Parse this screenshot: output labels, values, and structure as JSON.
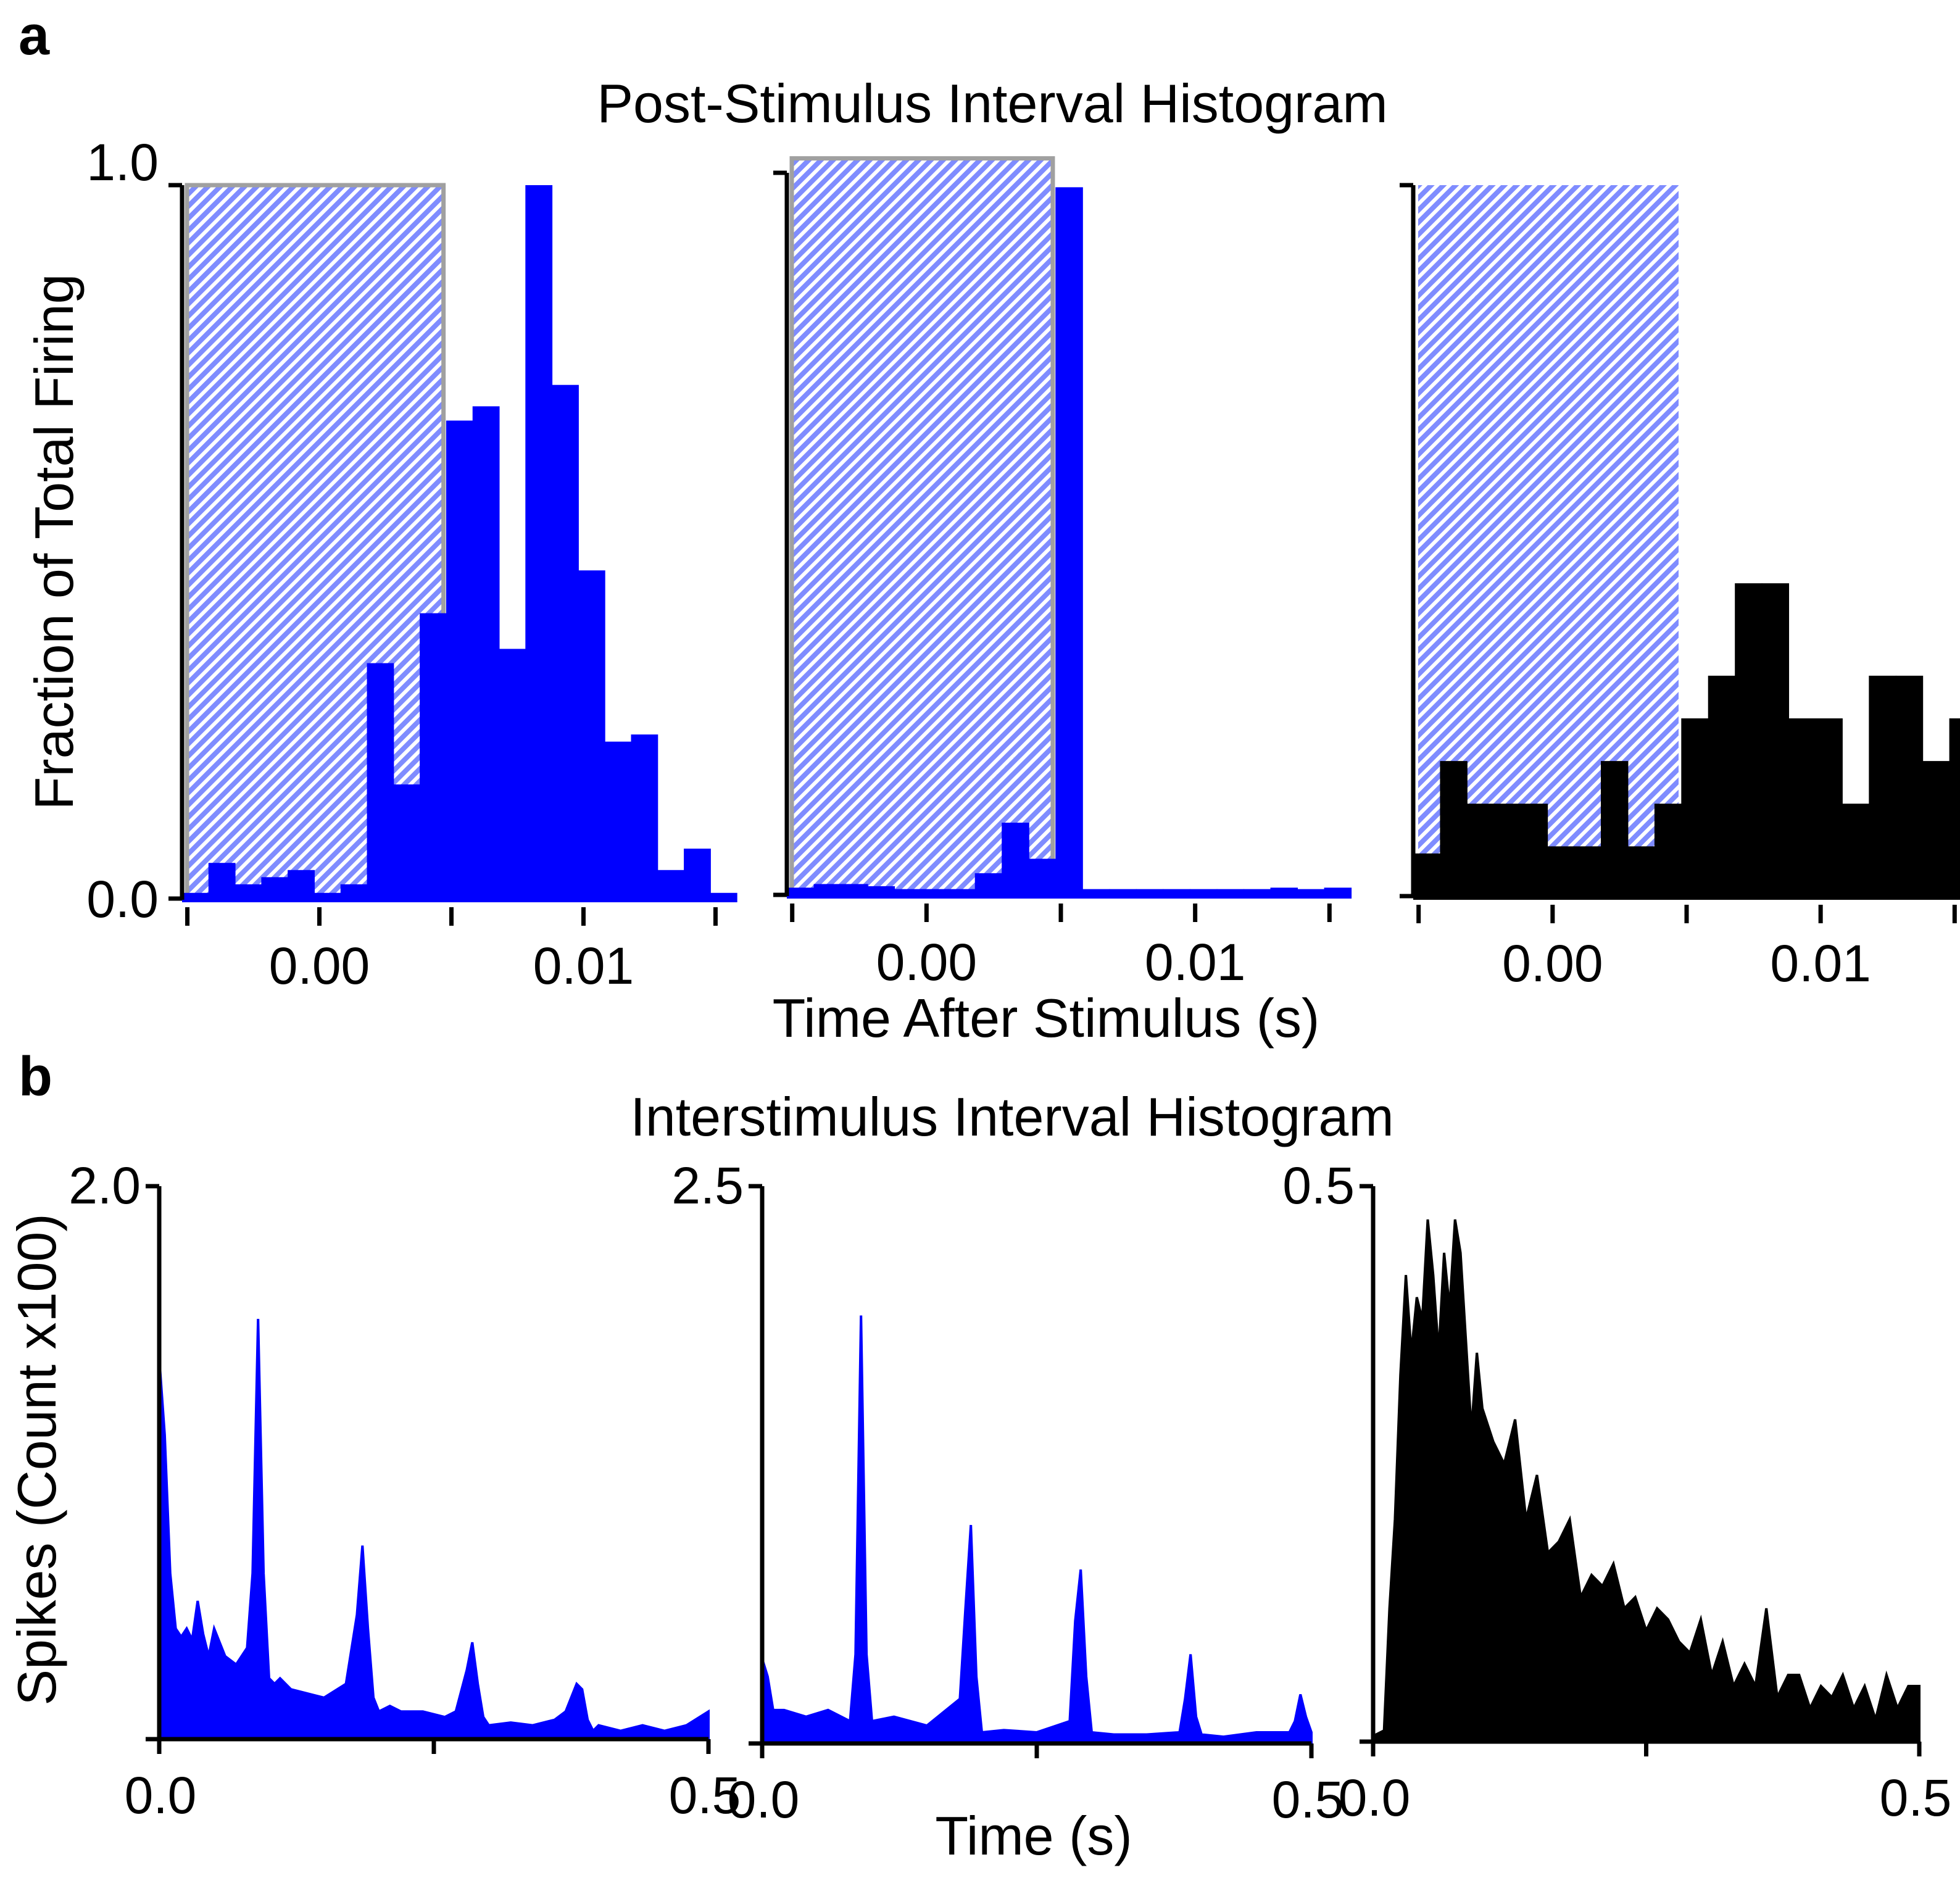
{
  "panel_a": {
    "letter": "a",
    "title": "Post-Stimulus Interval Histogram",
    "ylabel": "Fraction of Total Firing",
    "xlabel": "Time After Stimulus (s)"
  },
  "panel_b": {
    "letter": "b",
    "title": "Interstimulus Interval Histogram",
    "ylabel": "Spikes (Count x100)",
    "xlabel": "Time (s)"
  },
  "colors": {
    "blue": "#0000ff",
    "black": "#000000",
    "shade": "#7f8cff",
    "shade_border": "#a0a0a0"
  },
  "chart_data": [
    {
      "type": "bar",
      "panel": "a",
      "index": 0,
      "color": "#0000ff",
      "xlim": [
        -0.0052,
        0.0152
      ],
      "ylim": [
        0,
        1.0
      ],
      "yticks": [
        "0.0",
        "1.0"
      ],
      "xticks": [
        "0.00",
        "0.01"
      ],
      "stimulus_window": [
        -0.0052,
        0.0047
      ],
      "stimulus_level": 1.0,
      "stimulus_border": true,
      "bin_width": 0.001,
      "bins_start": [
        -0.0052,
        -0.0042,
        -0.0032,
        -0.0022,
        -0.0012,
        -0.0002,
        0.0008,
        0.0018,
        0.0028,
        0.0038,
        0.0048,
        0.0058,
        0.0068,
        0.0078,
        0.0088,
        0.0098,
        0.0108,
        0.0118,
        0.0128,
        0.0138,
        0.0148
      ],
      "values": [
        0.0,
        0.05,
        0.02,
        0.03,
        0.04,
        0.0,
        0.02,
        0.33,
        0.16,
        0.4,
        0.67,
        0.69,
        0.35,
        1.0,
        0.72,
        0.46,
        0.22,
        0.23,
        0.04,
        0.07,
        0.0
      ]
    },
    {
      "type": "bar",
      "panel": "a",
      "index": 1,
      "color": "#0000ff",
      "xlim": [
        -0.0052,
        0.0152
      ],
      "ylim": [
        0,
        1.0
      ],
      "xticks": [
        "0.00",
        "0.01"
      ],
      "stimulus_window": [
        -0.0052,
        0.0047
      ],
      "stimulus_level": 1.02,
      "stimulus_border": true,
      "bin_width": 0.001,
      "bins_start": [
        -0.0052,
        -0.0042,
        -0.0032,
        -0.0022,
        -0.0012,
        -0.0002,
        0.0008,
        0.0018,
        0.0028,
        0.0038,
        0.0048,
        0.0058,
        0.0068,
        0.0078,
        0.0088,
        0.0098,
        0.0108,
        0.0118,
        0.0128,
        0.0138,
        0.0148
      ],
      "values": [
        0.01,
        0.015,
        0.015,
        0.012,
        0.008,
        0.0,
        0.0,
        0.03,
        0.1,
        0.05,
        0.98,
        0.005,
        0.005,
        0.0,
        0.0,
        0.0,
        0.005,
        0.0,
        0.01,
        0.0,
        0.01
      ]
    },
    {
      "type": "bar",
      "panel": "a",
      "index": 2,
      "color": "#000000",
      "xlim": [
        -0.0052,
        0.0152
      ],
      "ylim": [
        0,
        1.0
      ],
      "xticks": [
        "0.00",
        "0.01"
      ],
      "stimulus_window": [
        -0.0052,
        0.0047
      ],
      "stimulus_level": 1.0,
      "stimulus_border": false,
      "bin_width": 0.001,
      "bins_start": [
        -0.0052,
        -0.0042,
        -0.0032,
        -0.0022,
        -0.0012,
        -0.0002,
        0.0008,
        0.0018,
        0.0028,
        0.0038,
        0.0048,
        0.0058,
        0.0068,
        0.0078,
        0.0088,
        0.0098,
        0.0108,
        0.0118,
        0.0128,
        0.0138,
        0.0148
      ],
      "values": [
        0.06,
        0.19,
        0.13,
        0.13,
        0.13,
        0.07,
        0.07,
        0.19,
        0.07,
        0.13,
        0.25,
        0.31,
        0.44,
        0.44,
        0.25,
        0.25,
        0.13,
        0.31,
        0.31,
        0.19,
        0.25
      ]
    },
    {
      "type": "area",
      "panel": "b",
      "index": 0,
      "color": "#0000ff",
      "xlim": [
        0,
        0.5
      ],
      "ylim": [
        0,
        2.0
      ],
      "xticks": [
        "0.0",
        "0.5"
      ],
      "yticks": [
        "2.0"
      ],
      "x": [
        0.0,
        0.005,
        0.01,
        0.015,
        0.02,
        0.025,
        0.03,
        0.035,
        0.04,
        0.045,
        0.05,
        0.06,
        0.07,
        0.08,
        0.085,
        0.09,
        0.095,
        0.1,
        0.105,
        0.11,
        0.12,
        0.13,
        0.15,
        0.17,
        0.18,
        0.185,
        0.19,
        0.195,
        0.2,
        0.21,
        0.22,
        0.24,
        0.26,
        0.27,
        0.28,
        0.285,
        0.29,
        0.295,
        0.3,
        0.32,
        0.34,
        0.36,
        0.37,
        0.38,
        0.385,
        0.39,
        0.395,
        0.4,
        0.42,
        0.44,
        0.46,
        0.48,
        0.5
      ],
      "values": [
        1.38,
        1.1,
        0.6,
        0.4,
        0.37,
        0.4,
        0.36,
        0.5,
        0.38,
        0.3,
        0.4,
        0.3,
        0.27,
        0.33,
        0.6,
        1.52,
        0.6,
        0.22,
        0.2,
        0.22,
        0.18,
        0.17,
        0.15,
        0.2,
        0.45,
        0.7,
        0.4,
        0.15,
        0.1,
        0.12,
        0.1,
        0.1,
        0.08,
        0.1,
        0.25,
        0.35,
        0.2,
        0.08,
        0.05,
        0.06,
        0.05,
        0.07,
        0.1,
        0.2,
        0.18,
        0.07,
        0.03,
        0.05,
        0.03,
        0.05,
        0.03,
        0.05,
        0.1
      ]
    },
    {
      "type": "area",
      "panel": "b",
      "index": 1,
      "color": "#0000ff",
      "xlim": [
        0,
        0.5
      ],
      "ylim": [
        0,
        2.5
      ],
      "xticks": [
        "0.0",
        "0.5"
      ],
      "yticks": [
        "2.5"
      ],
      "x": [
        0.0,
        0.005,
        0.01,
        0.02,
        0.04,
        0.06,
        0.08,
        0.085,
        0.09,
        0.095,
        0.1,
        0.12,
        0.15,
        0.18,
        0.185,
        0.19,
        0.195,
        0.2,
        0.22,
        0.25,
        0.28,
        0.285,
        0.29,
        0.295,
        0.3,
        0.32,
        0.35,
        0.38,
        0.385,
        0.39,
        0.395,
        0.4,
        0.42,
        0.45,
        0.48,
        0.485,
        0.49,
        0.495,
        0.5
      ],
      "values": [
        0.38,
        0.3,
        0.15,
        0.15,
        0.12,
        0.15,
        0.1,
        0.4,
        1.92,
        0.4,
        0.1,
        0.12,
        0.08,
        0.2,
        0.6,
        0.98,
        0.3,
        0.05,
        0.06,
        0.05,
        0.1,
        0.55,
        0.78,
        0.3,
        0.05,
        0.04,
        0.04,
        0.05,
        0.2,
        0.4,
        0.12,
        0.04,
        0.03,
        0.05,
        0.05,
        0.1,
        0.22,
        0.12,
        0.05
      ]
    },
    {
      "type": "area",
      "panel": "b",
      "index": 2,
      "color": "#000000",
      "xlim": [
        0,
        0.5
      ],
      "ylim": [
        0,
        0.5
      ],
      "xticks": [
        "0.0",
        "0.5"
      ],
      "yticks": [
        "0.5"
      ],
      "x": [
        0.0,
        0.01,
        0.015,
        0.02,
        0.025,
        0.03,
        0.035,
        0.04,
        0.045,
        0.05,
        0.055,
        0.06,
        0.065,
        0.07,
        0.075,
        0.08,
        0.085,
        0.09,
        0.095,
        0.1,
        0.11,
        0.12,
        0.13,
        0.14,
        0.15,
        0.16,
        0.17,
        0.18,
        0.19,
        0.2,
        0.21,
        0.22,
        0.23,
        0.24,
        0.25,
        0.26,
        0.27,
        0.28,
        0.29,
        0.3,
        0.31,
        0.32,
        0.33,
        0.34,
        0.35,
        0.36,
        0.37,
        0.38,
        0.39,
        0.4,
        0.41,
        0.42,
        0.43,
        0.44,
        0.45,
        0.46,
        0.47,
        0.48,
        0.49,
        0.5
      ],
      "values": [
        0.005,
        0.01,
        0.12,
        0.2,
        0.33,
        0.42,
        0.35,
        0.4,
        0.38,
        0.47,
        0.42,
        0.35,
        0.44,
        0.39,
        0.47,
        0.44,
        0.36,
        0.28,
        0.35,
        0.3,
        0.27,
        0.25,
        0.29,
        0.2,
        0.24,
        0.17,
        0.18,
        0.2,
        0.13,
        0.15,
        0.14,
        0.16,
        0.12,
        0.13,
        0.1,
        0.12,
        0.11,
        0.09,
        0.08,
        0.11,
        0.06,
        0.09,
        0.05,
        0.07,
        0.05,
        0.12,
        0.04,
        0.06,
        0.06,
        0.03,
        0.05,
        0.04,
        0.06,
        0.03,
        0.05,
        0.02,
        0.06,
        0.03,
        0.05,
        0.05
      ]
    }
  ]
}
